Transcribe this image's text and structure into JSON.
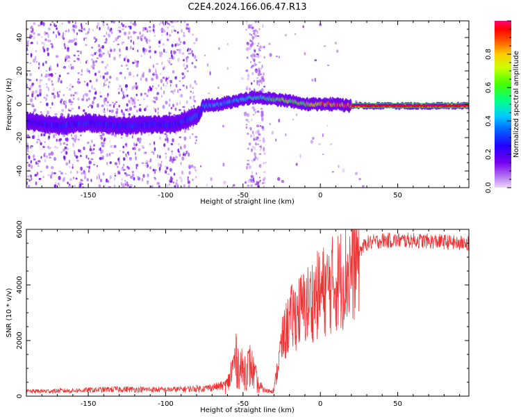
{
  "title": "C2E4.2024.166.06.47.R13",
  "chart_data": [
    {
      "type": "heatmap",
      "title": "C2E4.2024.166.06.47.R13",
      "xlabel": "Height of straight line (km)",
      "ylabel": "Frequency (Hz)",
      "xlim": [
        -190,
        96
      ],
      "ylim": [
        -50,
        50
      ],
      "xticks": [
        -150,
        -100,
        -50,
        0,
        50
      ],
      "yticks": [
        -40,
        -20,
        0,
        20,
        40
      ],
      "colorbar": {
        "label": "Normalized spectral amplitude",
        "range": [
          0,
          1
        ],
        "ticks": [
          "0.0",
          "0.2",
          "0.4",
          "0.6",
          "0.8"
        ],
        "colors": [
          "#eed8f8",
          "#7700ee",
          "#0000ff",
          "#00ccff",
          "#00ff66",
          "#66ff00",
          "#ffff00",
          "#ff8800",
          "#ff0000",
          "#ff0080"
        ]
      },
      "ridge": {
        "x": [
          -190,
          -170,
          -150,
          -130,
          -110,
          -95,
          -85,
          -78,
          -76,
          -65,
          -55,
          -45,
          -38,
          -30,
          -20,
          -10,
          0,
          10,
          20,
          96
        ],
        "frequency": [
          -10,
          -13,
          -11,
          -13,
          -12,
          -12,
          -9,
          -6,
          -1,
          0,
          2,
          4,
          4,
          3,
          2,
          0,
          0,
          0,
          -1,
          -1
        ],
        "amplitude": [
          0.25,
          0.3,
          0.3,
          0.3,
          0.3,
          0.3,
          0.35,
          0.35,
          0.4,
          0.45,
          0.45,
          0.5,
          0.55,
          0.6,
          0.7,
          0.75,
          0.85,
          0.9,
          0.95,
          0.95
        ]
      }
    },
    {
      "type": "line",
      "xlabel": "Height of straight line (km)",
      "ylabel": "SNR (10 * v/v)",
      "xlim": [
        -190,
        96
      ],
      "ylim": [
        0,
        6000
      ],
      "xticks": [
        -150,
        -100,
        -50,
        0,
        50
      ],
      "yticks": [
        0,
        2000,
        4000,
        6000
      ],
      "color": "#ee3333",
      "series": [
        {
          "name": "SNR",
          "x": [
            -190,
            -160,
            -130,
            -100,
            -85,
            -75,
            -60,
            -55,
            -50,
            -45,
            -40,
            -35,
            -30,
            -25,
            -20,
            -15,
            -10,
            -5,
            0,
            5,
            10,
            15,
            20,
            25,
            30,
            40,
            60,
            80,
            90,
            96
          ],
          "y": [
            170,
            200,
            250,
            230,
            260,
            280,
            400,
            1300,
            900,
            1100,
            350,
            180,
            220,
            1900,
            2700,
            3000,
            3200,
            3500,
            3700,
            3900,
            4100,
            4300,
            4600,
            5200,
            5500,
            5600,
            5600,
            5550,
            5500,
            5500
          ]
        }
      ]
    }
  ]
}
